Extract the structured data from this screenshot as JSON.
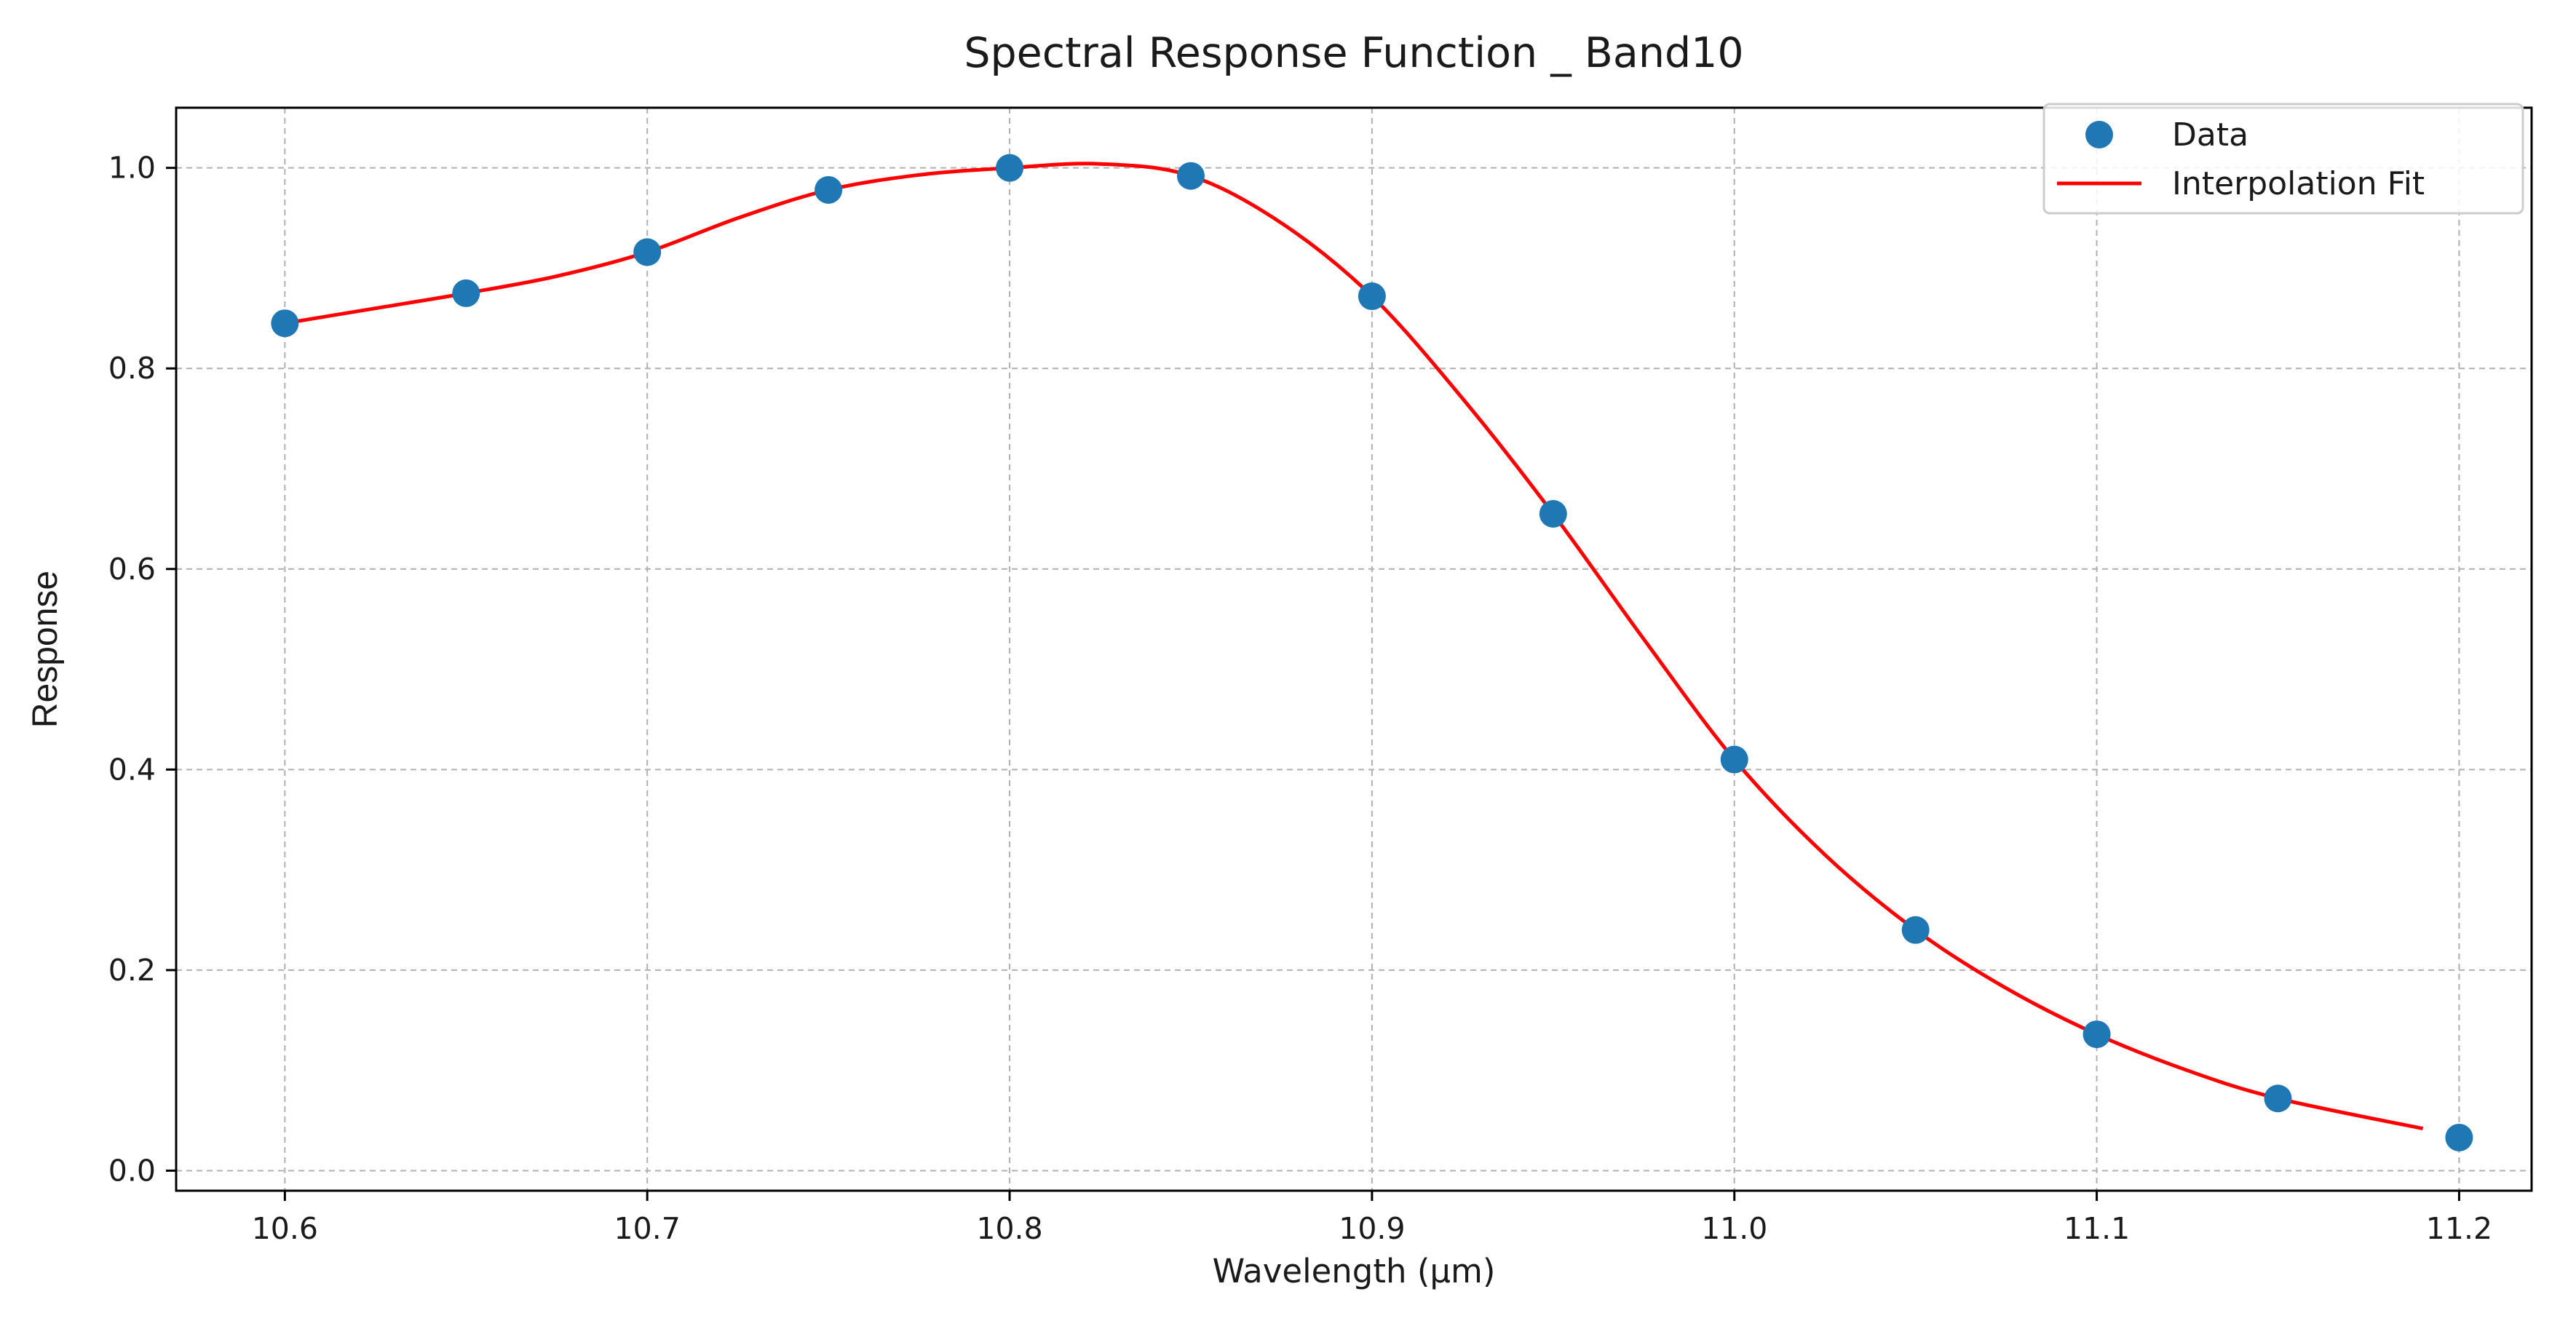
{
  "chart_data": {
    "type": "scatter",
    "title": "Spectral Response Function _ Band10",
    "xlabel": "Wavelength (μm)",
    "ylabel": "Response",
    "xlim": [
      10.57,
      11.22
    ],
    "ylim": [
      -0.02,
      1.06
    ],
    "grid": true,
    "legend_position": "top-right",
    "x_ticks": [
      10.6,
      10.7,
      10.8,
      10.9,
      11.0,
      11.1,
      11.2
    ],
    "x_tick_labels": [
      "10.6",
      "10.7",
      "10.8",
      "10.9",
      "11.0",
      "11.1",
      "11.2"
    ],
    "y_ticks": [
      0.0,
      0.2,
      0.4,
      0.6,
      0.8,
      1.0
    ],
    "y_tick_labels": [
      "0.0",
      "0.2",
      "0.4",
      "0.6",
      "0.8",
      "1.0"
    ],
    "series": [
      {
        "name": "Data",
        "kind": "scatter",
        "color": "#1f77b4",
        "x": [
          10.6,
          10.65,
          10.7,
          10.75,
          10.8,
          10.85,
          10.9,
          10.95,
          11.0,
          11.05,
          11.1,
          11.15,
          11.2
        ],
        "y": [
          0.845,
          0.875,
          0.916,
          0.978,
          1.0,
          0.992,
          0.872,
          0.655,
          0.41,
          0.24,
          0.136,
          0.072,
          0.033
        ]
      },
      {
        "name": "Interpolation Fit",
        "kind": "line",
        "color": "#ff0000",
        "x": [
          10.6,
          10.625,
          10.65,
          10.675,
          10.7,
          10.725,
          10.75,
          10.775,
          10.8,
          10.825,
          10.85,
          10.875,
          10.9,
          10.925,
          10.95,
          10.975,
          11.0,
          11.025,
          11.05,
          11.075,
          11.1,
          11.125,
          11.15,
          11.19
        ],
        "y": [
          0.845,
          0.86,
          0.875,
          0.892,
          0.916,
          0.95,
          0.978,
          0.993,
          1.0,
          1.004,
          0.992,
          0.945,
          0.872,
          0.77,
          0.655,
          0.53,
          0.41,
          0.315,
          0.24,
          0.182,
          0.136,
          0.1,
          0.072,
          0.042
        ]
      }
    ]
  }
}
